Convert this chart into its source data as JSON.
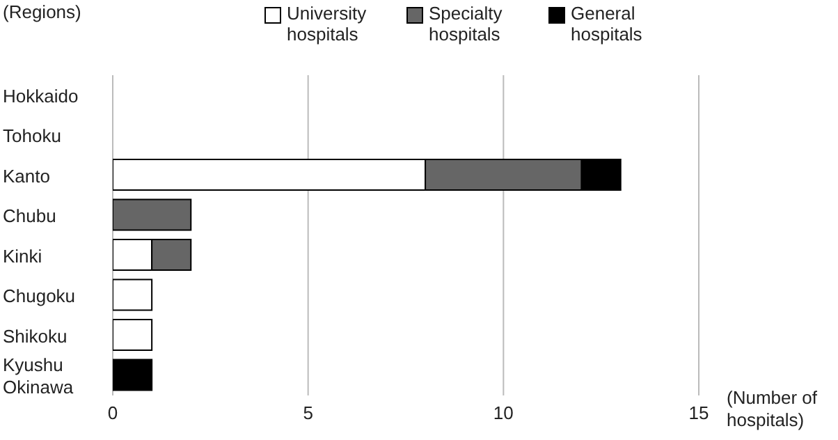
{
  "chart_data": {
    "type": "bar",
    "orientation": "horizontal",
    "stacked": true,
    "ylabel": "(Regions)",
    "xlabel": "(Number of hospitals)",
    "categories": [
      "Hokkaido",
      "Tohoku",
      "Kanto",
      "Chubu",
      "Kinki",
      "Chugoku",
      "Shikoku",
      "Kyushu Okinawa"
    ],
    "series": [
      {
        "name": "University hospitals",
        "color": "#ffffff",
        "values": [
          0,
          0,
          8,
          0,
          1,
          1,
          1,
          0
        ]
      },
      {
        "name": "Specialty hospitals",
        "color": "#666666",
        "values": [
          0,
          0,
          4,
          2,
          1,
          0,
          0,
          0
        ]
      },
      {
        "name": "General hospitals",
        "color": "#000000",
        "values": [
          0,
          0,
          1,
          0,
          0,
          0,
          0,
          1
        ]
      }
    ],
    "xlim": [
      0,
      15
    ],
    "xticks": [
      0,
      5,
      10,
      15
    ],
    "grid": "x",
    "legend": "top"
  }
}
